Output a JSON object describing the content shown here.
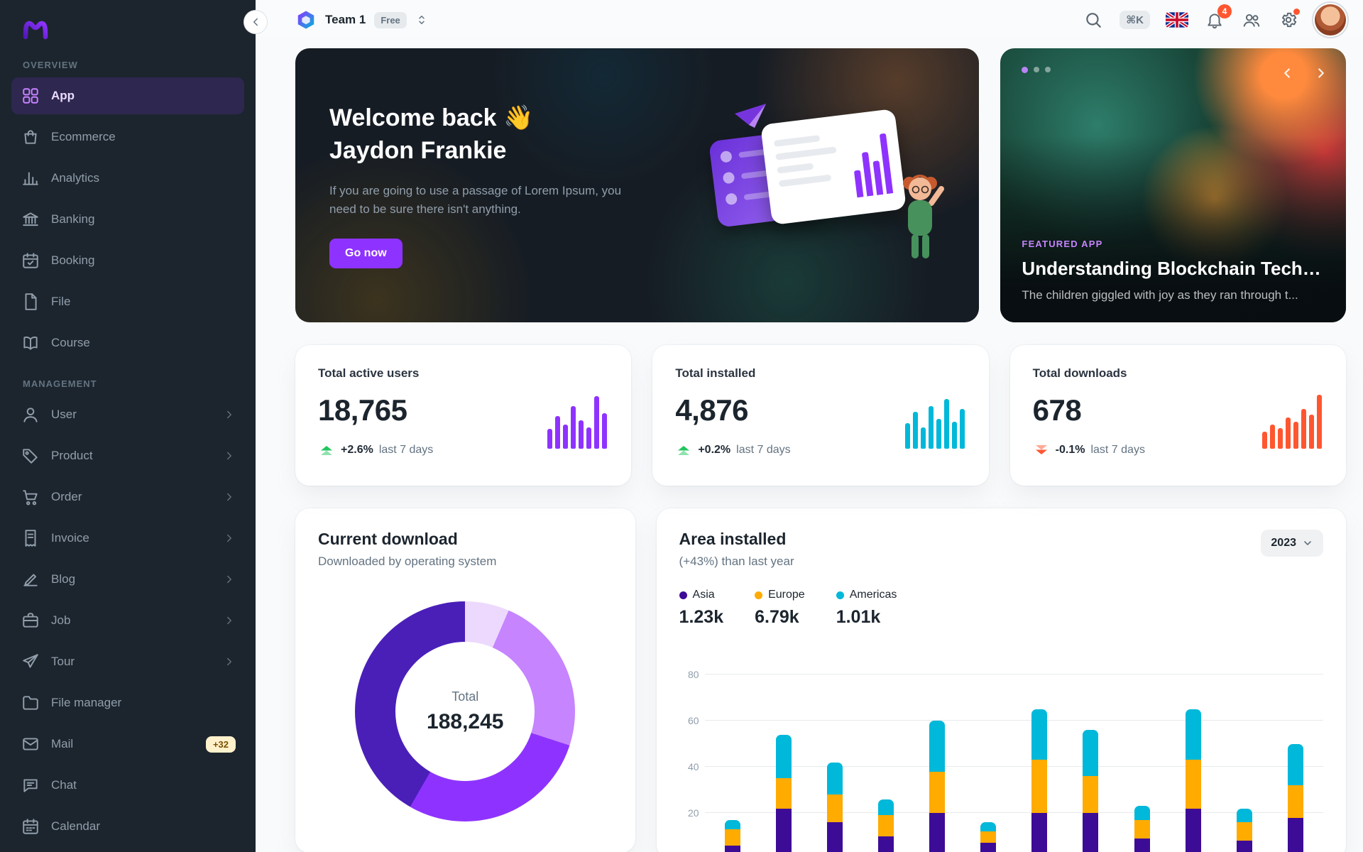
{
  "colors": {
    "primary": "#8E33FF",
    "success": "#22C55E",
    "error": "#FF5630",
    "warning": "#FFAB00",
    "info": "#00B8D9"
  },
  "sidebar": {
    "sections": [
      {
        "title": "OVERVIEW",
        "items": [
          {
            "label": "App",
            "icon": "app-icon",
            "active": true
          },
          {
            "label": "Ecommerce",
            "icon": "ecommerce-icon"
          },
          {
            "label": "Analytics",
            "icon": "analytics-icon"
          },
          {
            "label": "Banking",
            "icon": "banking-icon"
          },
          {
            "label": "Booking",
            "icon": "booking-icon"
          },
          {
            "label": "File",
            "icon": "file-icon"
          },
          {
            "label": "Course",
            "icon": "course-icon"
          }
        ]
      },
      {
        "title": "MANAGEMENT",
        "items": [
          {
            "label": "User",
            "icon": "user-icon",
            "chevron": true
          },
          {
            "label": "Product",
            "icon": "product-icon",
            "chevron": true
          },
          {
            "label": "Order",
            "icon": "order-icon",
            "chevron": true
          },
          {
            "label": "Invoice",
            "icon": "invoice-icon",
            "chevron": true
          },
          {
            "label": "Blog",
            "icon": "blog-icon",
            "chevron": true
          },
          {
            "label": "Job",
            "icon": "job-icon",
            "chevron": true
          },
          {
            "label": "Tour",
            "icon": "tour-icon",
            "chevron": true
          },
          {
            "label": "File manager",
            "icon": "folder-icon"
          },
          {
            "label": "Mail",
            "icon": "mail-icon",
            "badge": "+32"
          },
          {
            "label": "Chat",
            "icon": "chat-icon"
          },
          {
            "label": "Calendar",
            "icon": "calendar-icon"
          }
        ]
      }
    ]
  },
  "header": {
    "team": "Team 1",
    "plan_badge": "Free",
    "search_shortcut": "⌘K",
    "notification_count": "4",
    "icons": {
      "search": "search-icon",
      "language": "uk-flag-icon",
      "notifications": "bell-icon",
      "contacts": "contacts-icon",
      "settings": "gear-icon",
      "account": "avatar"
    }
  },
  "welcome": {
    "title_line1": "Welcome back 👋",
    "title_line2": "Jaydon Frankie",
    "body": "If you are going to use a passage of Lorem Ipsum, you need to be sure there isn't anything.",
    "cta": "Go now"
  },
  "featured": {
    "tag": "FEATURED APP",
    "title": "Understanding Blockchain Technolo...",
    "subtitle": "The children giggled with joy as they ran through t..."
  },
  "stats": [
    {
      "title": "Total active users",
      "value": "18,765",
      "delta": "+2.6%",
      "period": "last 7 days",
      "trend": "up"
    },
    {
      "title": "Total installed",
      "value": "4,876",
      "delta": "+0.2%",
      "period": "last 7 days",
      "trend": "up"
    },
    {
      "title": "Total downloads",
      "value": "678",
      "delta": "-0.1%",
      "period": "last 7 days",
      "trend": "down"
    }
  ],
  "current_download": {
    "title": "Current download",
    "subtitle": "Downloaded by operating system",
    "total_label": "Total",
    "total_value": "188,245"
  },
  "area_installed": {
    "title": "Area installed",
    "subtitle": "(+43%) than last year",
    "year": "2023"
  },
  "chart_data": {
    "donut": {
      "id": "current-download-donut",
      "type": "pie",
      "title": "Current download",
      "total_label": "Total",
      "total_value": "188,245",
      "segments": [
        {
          "label": "segment-1",
          "percent": 6.5,
          "color": "#ECD9FD"
        },
        {
          "label": "segment-2",
          "percent": 23.5,
          "color": "#C684FF"
        },
        {
          "label": "segment-3",
          "percent": 28.3,
          "color": "#8E33FF"
        },
        {
          "label": "segment-4",
          "percent": 41.7,
          "color": "#4A1FB8"
        }
      ]
    },
    "area": {
      "id": "area-installed-bars",
      "type": "bar",
      "stacked": true,
      "title": "Area installed",
      "subtitle": "(+43%) than last year",
      "legend_position": "top",
      "ylim": [
        0,
        80
      ],
      "yticks": [
        20,
        40,
        60,
        80
      ],
      "series": [
        {
          "name": "Asia",
          "total_label": "1.23k",
          "color": "#3D0C97",
          "values": [
            6,
            22,
            16,
            10,
            20,
            7,
            20,
            20,
            9,
            22,
            8,
            18
          ]
        },
        {
          "name": "Europe",
          "total_label": "6.79k",
          "color": "#FFAB00",
          "values": [
            7,
            13,
            12,
            9,
            18,
            5,
            23,
            16,
            8,
            21,
            8,
            14
          ]
        },
        {
          "name": "Americas",
          "total_label": "1.01k",
          "color": "#00B8D9",
          "values": [
            4,
            19,
            14,
            7,
            22,
            4,
            22,
            20,
            6,
            22,
            6,
            18
          ]
        }
      ]
    },
    "sparks": [
      {
        "id": "active-users-spark",
        "type": "bar",
        "color": "#8E33FF",
        "values": [
          35,
          58,
          42,
          75,
          50,
          38,
          92,
          62
        ]
      },
      {
        "id": "installed-spark",
        "type": "bar",
        "color": "#00B8D9",
        "values": [
          45,
          65,
          38,
          75,
          52,
          88,
          48,
          70
        ]
      },
      {
        "id": "downloads-spark",
        "type": "bar",
        "color": "#FF5630",
        "values": [
          30,
          42,
          36,
          55,
          48,
          70,
          60,
          95
        ]
      }
    ]
  }
}
